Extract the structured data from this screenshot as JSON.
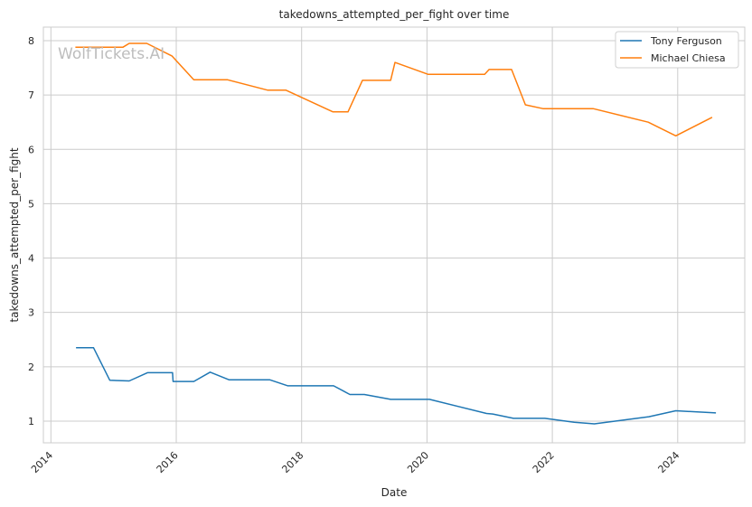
{
  "chart_data": {
    "type": "line",
    "title": "takedowns_attempted_per_fight over time",
    "xlabel": "Date",
    "ylabel": "takedowns_attempted_per_fight",
    "xlim": [
      2013.88,
      2025.07
    ],
    "ylim": [
      0.6,
      8.25
    ],
    "xticks": [
      2014,
      2016,
      2018,
      2020,
      2022,
      2024
    ],
    "xtick_labels": [
      "2014",
      "2016",
      "2018",
      "2020",
      "2022",
      "2024"
    ],
    "yticks": [
      1,
      2,
      3,
      4,
      5,
      6,
      7,
      8
    ],
    "ytick_labels": [
      "1",
      "2",
      "3",
      "4",
      "5",
      "6",
      "7",
      "8"
    ],
    "grid": true,
    "legend_placement": "top-right",
    "watermark": "WolfTickets.AI",
    "series": [
      {
        "name": "Tony Ferguson",
        "color": "#1f77b4",
        "x": [
          2014.4,
          2014.68,
          2014.94,
          2015.25,
          2015.54,
          2015.94,
          2015.95,
          2016.28,
          2016.54,
          2016.84,
          2017.49,
          2017.78,
          2018.51,
          2018.77,
          2019.0,
          2019.42,
          2020.04,
          2020.95,
          2021.05,
          2021.38,
          2021.88,
          2022.35,
          2022.67,
          2023.54,
          2023.97,
          2024.61
        ],
        "y": [
          2.35,
          2.35,
          1.75,
          1.74,
          1.89,
          1.89,
          1.73,
          1.73,
          1.9,
          1.76,
          1.76,
          1.65,
          1.65,
          1.49,
          1.49,
          1.4,
          1.4,
          1.14,
          1.13,
          1.05,
          1.05,
          0.98,
          0.95,
          1.08,
          1.19,
          1.15
        ]
      },
      {
        "name": "Michael Chiesa",
        "color": "#ff7f0e",
        "x": [
          2014.39,
          2015.15,
          2015.25,
          2015.53,
          2015.93,
          2016.28,
          2016.82,
          2017.46,
          2017.75,
          2018.5,
          2018.74,
          2018.97,
          2019.42,
          2019.49,
          2020.02,
          2020.92,
          2020.99,
          2021.35,
          2021.57,
          2021.85,
          2022.65,
          2023.53,
          2023.97,
          2024.55
        ],
        "y": [
          7.88,
          7.88,
          7.95,
          7.95,
          7.72,
          7.28,
          7.28,
          7.09,
          7.09,
          6.69,
          6.69,
          7.27,
          7.27,
          7.6,
          7.38,
          7.38,
          7.47,
          7.47,
          6.82,
          6.75,
          6.75,
          6.5,
          6.25,
          6.59
        ]
      }
    ]
  }
}
